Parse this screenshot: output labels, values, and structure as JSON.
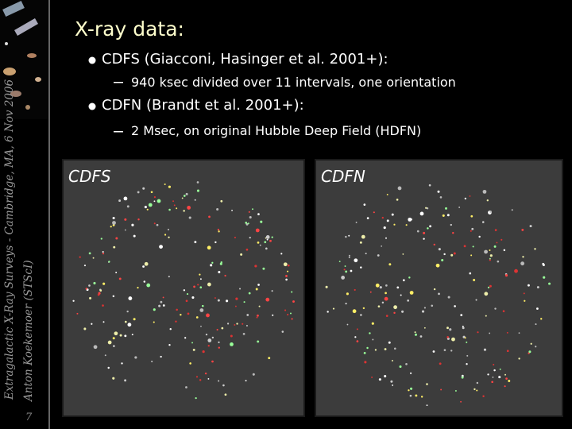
{
  "slide": {
    "title": "X-ray data:",
    "bullets": [
      {
        "text": "CDFS (Giacconi, Hasinger et al. 2001+):",
        "sub": "940 ksec divided over 11 intervals, one orientation"
      },
      {
        "text": "CDFN (Brandt et al. 2001+):",
        "sub": "2 Msec, on original Hubble Deep Field (HDFN)"
      }
    ],
    "images": [
      {
        "label": "CDFS"
      },
      {
        "label": "CDFN"
      }
    ],
    "sidebar": {
      "line1": "Extragalactic X-Ray Surveys - Cambridge, MA, 6 Nov 2006",
      "line2": "Anton Koekemoer (STScI)"
    },
    "page_number": "7"
  }
}
